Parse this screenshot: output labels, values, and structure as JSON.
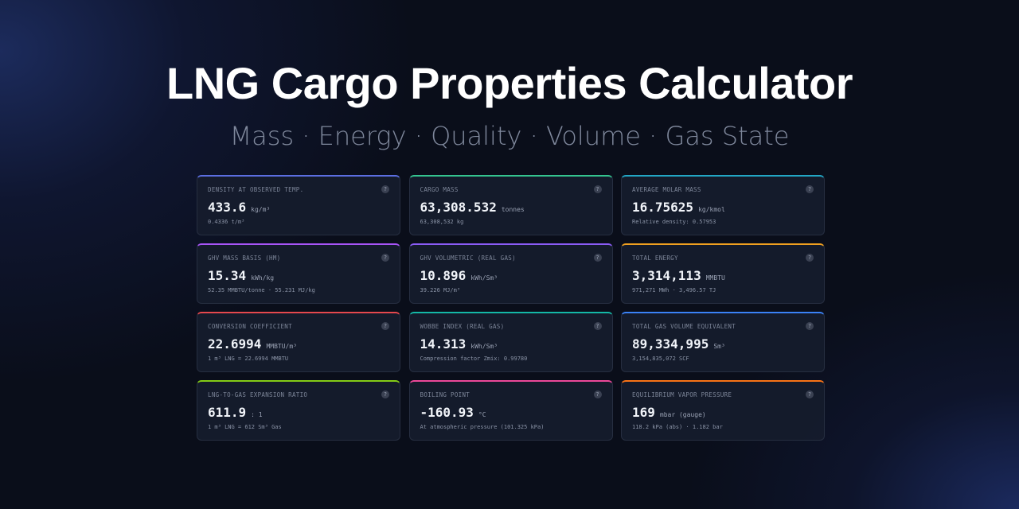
{
  "header": {
    "title": "LNG Cargo Properties Calculator",
    "subtitle": "Mass · Energy · Quality · Volume · Gas State"
  },
  "help_label": "?",
  "cards": [
    {
      "label": "DENSITY AT OBSERVED TEMP.",
      "value": "433.6",
      "unit": "kg/m³",
      "detail": "0.4336 t/m³",
      "accent": "#5b6ee1"
    },
    {
      "label": "CARGO MASS",
      "value": "63,308.532",
      "unit": "tonnes",
      "detail": "63,308,532 kg",
      "accent": "#34c38f"
    },
    {
      "label": "AVERAGE MOLAR MASS",
      "value": "16.75625",
      "unit": "kg/kmol",
      "detail": "Relative density: 0.57953",
      "accent": "#22a6c4"
    },
    {
      "label": "GHV MASS BASIS (HM)",
      "value": "15.34",
      "unit": "kWh/kg",
      "detail": "52.35 MMBTU/tonne · 55.231 MJ/kg",
      "accent": "#a855f7"
    },
    {
      "label": "GHV VOLUMETRIC (REAL GAS)",
      "value": "10.896",
      "unit": "kWh/Sm³",
      "detail": "39.226 MJ/m³",
      "accent": "#8b5cf6"
    },
    {
      "label": "TOTAL ENERGY",
      "value": "3,314,113",
      "unit": "MMBTU",
      "detail": "971,271 MWh · 3,496.57 TJ",
      "accent": "#f0a020"
    },
    {
      "label": "CONVERSION COEFFICIENT",
      "value": "22.6994",
      "unit": "MMBTU/m³",
      "detail": "1 m³ LNG = 22.6994 MMBTU",
      "accent": "#e5484d"
    },
    {
      "label": "WOBBE INDEX (REAL GAS)",
      "value": "14.313",
      "unit": "kWh/Sm³",
      "detail": "Compression factor Zmix: 0.99780",
      "accent": "#14b8a6"
    },
    {
      "label": "TOTAL GAS VOLUME EQUIVALENT",
      "value": "89,334,995",
      "unit": "Sm³",
      "detail": "3,154,835,072 SCF",
      "accent": "#3b82f6"
    },
    {
      "label": "LNG-TO-GAS EXPANSION RATIO",
      "value": "611.9",
      "unit": ": 1",
      "detail": "1 m³ LNG = 612 Sm³ Gas",
      "accent": "#84cc16"
    },
    {
      "label": "BOILING POINT",
      "value": "-160.93",
      "unit": "°C",
      "detail": "At atmospheric pressure (101.325 kPa)",
      "accent": "#ec4899"
    },
    {
      "label": "EQUILIBRIUM VAPOR PRESSURE",
      "value": "169",
      "unit": "mbar (gauge)",
      "detail": "118.2 kPa (abs) · 1.182 bar",
      "accent": "#f97316"
    }
  ]
}
